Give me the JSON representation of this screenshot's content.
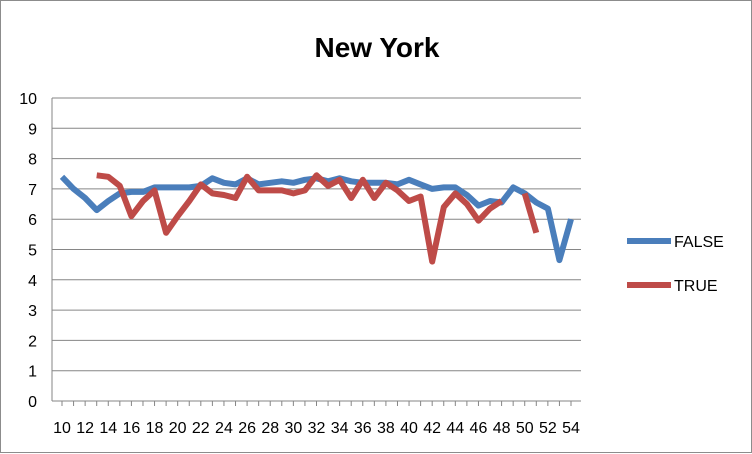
{
  "chart_data": {
    "type": "line",
    "title": "New York",
    "xlabel": "",
    "ylabel": "",
    "ylim": [
      0,
      10
    ],
    "yticks": [
      "0",
      "1",
      "2",
      "3",
      "4",
      "5",
      "6",
      "7",
      "8",
      "9",
      "10"
    ],
    "x": [
      10,
      11,
      12,
      13,
      14,
      15,
      16,
      17,
      18,
      19,
      20,
      21,
      22,
      23,
      24,
      25,
      26,
      27,
      28,
      29,
      30,
      31,
      32,
      33,
      34,
      35,
      36,
      37,
      38,
      39,
      40,
      41,
      42,
      43,
      44,
      45,
      46,
      47,
      48,
      49,
      50,
      51,
      52,
      53,
      54
    ],
    "xticks": [
      "10",
      "12",
      "14",
      "16",
      "18",
      "20",
      "22",
      "24",
      "26",
      "28",
      "30",
      "32",
      "34",
      "36",
      "38",
      "40",
      "42",
      "44",
      "46",
      "48",
      "50",
      "52",
      "54"
    ],
    "grid": "horizontal",
    "legend_position": "right",
    "series": [
      {
        "name": "FALSE",
        "color": "#4a7ebb",
        "values": [
          7.4,
          7.0,
          6.7,
          6.3,
          6.6,
          6.85,
          6.9,
          6.9,
          7.05,
          7.05,
          7.05,
          7.05,
          7.1,
          7.35,
          7.2,
          7.15,
          7.35,
          7.15,
          7.2,
          7.25,
          7.2,
          7.3,
          7.35,
          7.25,
          7.35,
          7.25,
          7.2,
          7.2,
          7.2,
          7.15,
          7.3,
          7.15,
          7.0,
          7.05,
          7.05,
          6.8,
          6.45,
          6.6,
          6.55,
          7.05,
          6.85,
          6.55,
          6.35,
          4.65,
          6.0
        ]
      },
      {
        "name": "TRUE",
        "color": "#be4b48",
        "values": [
          null,
          null,
          null,
          7.45,
          7.4,
          7.1,
          6.1,
          6.6,
          6.95,
          5.55,
          6.1,
          6.6,
          7.15,
          6.85,
          6.8,
          6.7,
          7.4,
          6.95,
          6.95,
          6.95,
          6.85,
          6.95,
          7.45,
          7.1,
          7.3,
          6.7,
          7.3,
          6.7,
          7.2,
          6.95,
          6.6,
          6.75,
          4.6,
          6.4,
          6.85,
          6.5,
          5.95,
          6.35,
          6.6,
          null,
          6.85,
          5.55,
          null,
          null,
          null
        ]
      }
    ]
  }
}
